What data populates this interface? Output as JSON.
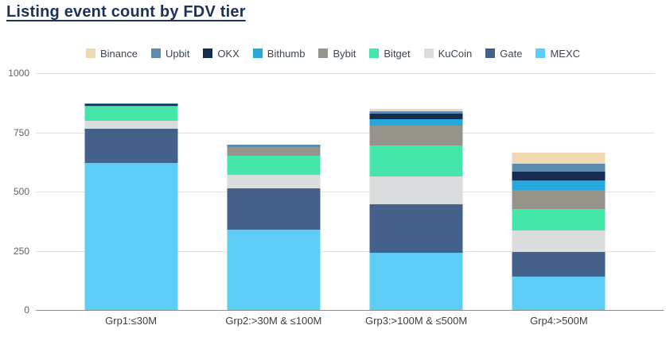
{
  "page": {
    "title": "Listing event count by FDV tier"
  },
  "chart_data": {
    "type": "bar",
    "stacked": true,
    "title": "Listing event count by FDV tier",
    "xlabel": "",
    "ylabel": "",
    "ylim": [
      0,
      1000
    ],
    "yticks": [
      0,
      250,
      500,
      750,
      1000
    ],
    "grid": "horizontal",
    "legend_position": "top",
    "stack_order": "bottom-to-top is reverse of legend order (MEXC at bottom, Binance at top)",
    "categories": [
      "Grp1:≤30M",
      "Grp2:>30M & ≤100M",
      "Grp3:>100M & ≤500M",
      "Grp4:>500M"
    ],
    "series": [
      {
        "name": "Binance",
        "color": "#f0d9b2",
        "values": [
          0,
          0,
          12,
          47
        ]
      },
      {
        "name": "Upbit",
        "color": "#5b8cad",
        "values": [
          4,
          10,
          8,
          33
        ]
      },
      {
        "name": "OKX",
        "color": "#132c4f",
        "values": [
          6,
          0,
          25,
          38
        ]
      },
      {
        "name": "Bithumb",
        "color": "#26a8dc",
        "values": [
          2,
          0,
          25,
          40
        ]
      },
      {
        "name": "Bybit",
        "color": "#95938a",
        "values": [
          3,
          38,
          85,
          80
        ]
      },
      {
        "name": "Bitget",
        "color": "#45e6aa",
        "values": [
          58,
          78,
          130,
          92
        ]
      },
      {
        "name": "KuCoin",
        "color": "#dadcdd",
        "values": [
          35,
          60,
          120,
          90
        ]
      },
      {
        "name": "Gate",
        "color": "#44618c",
        "values": [
          145,
          172,
          205,
          105
        ]
      },
      {
        "name": "MEXC",
        "color": "#5ecdf6",
        "values": [
          620,
          340,
          240,
          140
        ]
      }
    ],
    "totals": [
      873,
      698,
      850,
      665
    ],
    "colors": {
      "title_text": "#1b3358",
      "legend_text": "#3b4754",
      "axis_tick_text": "#5f6368",
      "category_text": "#3c4043",
      "gridline": "#e2e2e2",
      "zero_axis_line": "#8f8f8f",
      "background": "#ffffff"
    }
  }
}
